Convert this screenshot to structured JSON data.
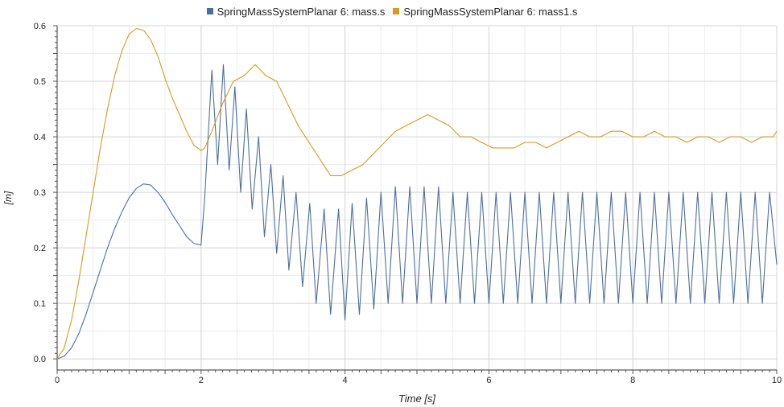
{
  "chart_data": {
    "type": "line",
    "title": "",
    "xlabel": "Time [s]",
    "ylabel": "[m]",
    "xlim": [
      0,
      10
    ],
    "ylim": [
      -0.02,
      0.6
    ],
    "x_ticks": [
      "0",
      "2",
      "4",
      "6",
      "8",
      "10"
    ],
    "y_ticks": [
      "0.0",
      "0.1",
      "0.2",
      "0.3",
      "0.4",
      "0.5",
      "0.6"
    ],
    "grid": true,
    "legend_position": "top-center",
    "series": [
      {
        "name": "SpringMassSystemPlanar 6: mass.s",
        "color": "#4a6fa5",
        "x": [
          0,
          0.1,
          0.2,
          0.3,
          0.4,
          0.5,
          0.6,
          0.7,
          0.8,
          0.9,
          1.0,
          1.1,
          1.2,
          1.3,
          1.4,
          1.5,
          1.6,
          1.7,
          1.8,
          1.9,
          2.0,
          2.05,
          2.15,
          2.23,
          2.31,
          2.39,
          2.47,
          2.55,
          2.63,
          2.71,
          2.8,
          2.88,
          2.97,
          3.05,
          3.14,
          3.22,
          3.32,
          3.41,
          3.51,
          3.6,
          3.71,
          3.8,
          3.91,
          4.0,
          4.1,
          4.2,
          4.3,
          4.4,
          4.5,
          4.6,
          4.7,
          4.8,
          4.9,
          5.0,
          5.1,
          5.2,
          5.3,
          5.4,
          5.5,
          5.6,
          5.7,
          5.8,
          5.9,
          6.0,
          6.1,
          6.2,
          6.3,
          6.4,
          6.5,
          6.6,
          6.7,
          6.8,
          6.9,
          7.0,
          7.1,
          7.2,
          7.3,
          7.4,
          7.5,
          7.6,
          7.7,
          7.8,
          7.9,
          8.0,
          8.1,
          8.2,
          8.3,
          8.4,
          8.5,
          8.6,
          8.7,
          8.8,
          8.9,
          9.0,
          9.1,
          9.2,
          9.3,
          9.4,
          9.5,
          9.6,
          9.7,
          9.8,
          9.9,
          10.0
        ],
        "values": [
          0.0,
          0.005,
          0.02,
          0.045,
          0.08,
          0.12,
          0.16,
          0.2,
          0.235,
          0.265,
          0.29,
          0.307,
          0.315,
          0.313,
          0.3,
          0.282,
          0.26,
          0.24,
          0.22,
          0.208,
          0.205,
          0.29,
          0.52,
          0.35,
          0.53,
          0.34,
          0.49,
          0.3,
          0.45,
          0.27,
          0.4,
          0.22,
          0.35,
          0.19,
          0.33,
          0.16,
          0.3,
          0.13,
          0.28,
          0.1,
          0.27,
          0.08,
          0.27,
          0.07,
          0.28,
          0.08,
          0.29,
          0.09,
          0.3,
          0.1,
          0.31,
          0.1,
          0.31,
          0.1,
          0.31,
          0.1,
          0.31,
          0.1,
          0.3,
          0.1,
          0.3,
          0.1,
          0.3,
          0.1,
          0.3,
          0.1,
          0.3,
          0.1,
          0.3,
          0.1,
          0.3,
          0.1,
          0.3,
          0.1,
          0.3,
          0.1,
          0.3,
          0.1,
          0.3,
          0.1,
          0.3,
          0.1,
          0.3,
          0.1,
          0.3,
          0.1,
          0.3,
          0.1,
          0.3,
          0.1,
          0.3,
          0.1,
          0.3,
          0.1,
          0.3,
          0.1,
          0.3,
          0.1,
          0.3,
          0.1,
          0.3,
          0.1,
          0.3,
          0.17
        ]
      },
      {
        "name": "SpringMassSystemPlanar 6: mass1.s",
        "color": "#d99a1e",
        "x": [
          0,
          0.1,
          0.2,
          0.3,
          0.4,
          0.5,
          0.6,
          0.7,
          0.8,
          0.9,
          1.0,
          1.1,
          1.2,
          1.3,
          1.4,
          1.5,
          1.6,
          1.7,
          1.8,
          1.9,
          2.0,
          2.05,
          2.15,
          2.3,
          2.45,
          2.6,
          2.75,
          2.9,
          3.05,
          3.2,
          3.35,
          3.5,
          3.65,
          3.8,
          3.95,
          4.1,
          4.25,
          4.4,
          4.55,
          4.7,
          4.85,
          5.0,
          5.15,
          5.3,
          5.45,
          5.6,
          5.75,
          5.9,
          6.05,
          6.2,
          6.35,
          6.5,
          6.65,
          6.8,
          6.95,
          7.1,
          7.25,
          7.4,
          7.55,
          7.7,
          7.85,
          8.0,
          8.15,
          8.3,
          8.45,
          8.6,
          8.75,
          8.9,
          9.05,
          9.2,
          9.35,
          9.5,
          9.65,
          9.8,
          9.95,
          10.0
        ],
        "values": [
          0.0,
          0.02,
          0.07,
          0.14,
          0.22,
          0.3,
          0.38,
          0.45,
          0.51,
          0.555,
          0.585,
          0.595,
          0.592,
          0.575,
          0.545,
          0.505,
          0.47,
          0.44,
          0.41,
          0.385,
          0.375,
          0.38,
          0.41,
          0.46,
          0.5,
          0.51,
          0.53,
          0.51,
          0.5,
          0.46,
          0.42,
          0.39,
          0.36,
          0.33,
          0.33,
          0.34,
          0.35,
          0.37,
          0.39,
          0.41,
          0.42,
          0.43,
          0.44,
          0.43,
          0.42,
          0.4,
          0.4,
          0.39,
          0.38,
          0.38,
          0.38,
          0.39,
          0.39,
          0.38,
          0.39,
          0.4,
          0.41,
          0.4,
          0.4,
          0.41,
          0.41,
          0.4,
          0.4,
          0.41,
          0.4,
          0.4,
          0.39,
          0.4,
          0.4,
          0.39,
          0.4,
          0.4,
          0.39,
          0.4,
          0.4,
          0.41
        ]
      }
    ]
  }
}
